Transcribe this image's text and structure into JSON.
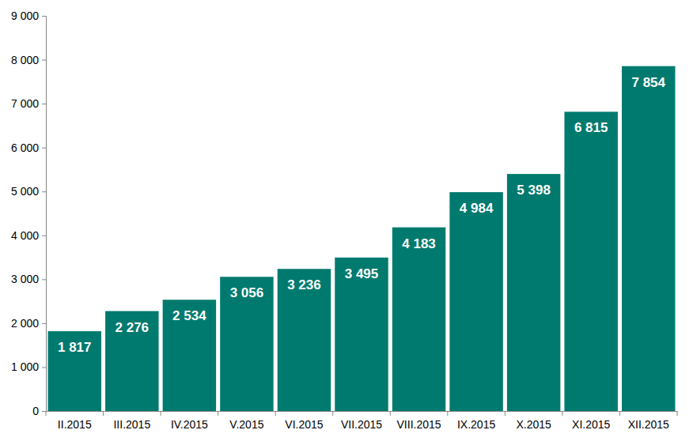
{
  "chart_data": {
    "type": "bar",
    "categories": [
      "II.2015",
      "III.2015",
      "IV.2015",
      "V.2015",
      "VI.2015",
      "VII.2015",
      "VIII.2015",
      "IX.2015",
      "X.2015",
      "XI.2015",
      "XII.2015"
    ],
    "values": [
      1817,
      2276,
      2534,
      3056,
      3236,
      3495,
      4183,
      4984,
      5398,
      6815,
      7854
    ],
    "value_labels": [
      "1 817",
      "2 276",
      "2 534",
      "3 056",
      "3 236",
      "3 495",
      "4 183",
      "4 984",
      "5 398",
      "6 815",
      "7 854"
    ],
    "color": "#007a6e",
    "ylim": [
      0,
      9000
    ],
    "yticks": [
      0,
      {
        "value": 1000,
        "label": "1 000"
      },
      {
        "value": 2000,
        "label": "2 000"
      },
      {
        "value": 3000,
        "label": "3 000"
      },
      {
        "value": 4000,
        "label": "4 000"
      },
      {
        "value": 5000,
        "label": "5 000"
      },
      {
        "value": 6000,
        "label": "6 000"
      },
      {
        "value": 7000,
        "label": "7 000"
      },
      {
        "value": 8000,
        "label": "8 000"
      },
      {
        "value": 9000,
        "label": "9 000"
      }
    ],
    "grid": false,
    "data_labels": true
  }
}
